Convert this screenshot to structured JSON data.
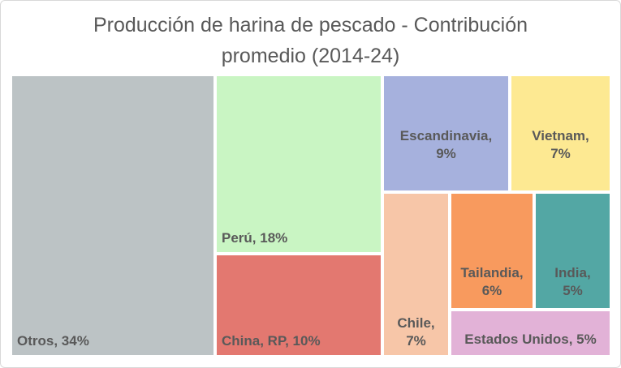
{
  "chart_data": {
    "type": "treemap",
    "title_lines": [
      "Producción de harina de pescado - Contribución",
      "promedio (2014-24)"
    ],
    "items": [
      {
        "key": "otros",
        "label": "Otros, 34%",
        "name": "Otros",
        "value": 34,
        "color": "#bcc3c5"
      },
      {
        "key": "peru",
        "label": "Perú, 18%",
        "name": "Perú",
        "value": 18,
        "color": "#c9f5c3"
      },
      {
        "key": "china",
        "label": "China, RP, 10%",
        "name": "China, RP",
        "value": 10,
        "color": "#e37870"
      },
      {
        "key": "escand",
        "label_lines": [
          "Escandinavia,",
          "9%"
        ],
        "name": "Escandinavia",
        "value": 9,
        "color": "#a6b1dd"
      },
      {
        "key": "vietnam",
        "label_lines": [
          "Vietnam,",
          "7%"
        ],
        "name": "Vietnam",
        "value": 7,
        "color": "#fde992"
      },
      {
        "key": "chile",
        "label_lines": [
          "Chile,",
          "7%"
        ],
        "name": "Chile",
        "value": 7,
        "color": "#f7c6a8"
      },
      {
        "key": "tailandia",
        "label_lines": [
          "Tailandia,",
          "6%"
        ],
        "name": "Tailandia",
        "value": 6,
        "color": "#f89a5e"
      },
      {
        "key": "india",
        "label_lines": [
          "India,",
          "5%"
        ],
        "name": "India",
        "value": 5,
        "color": "#53a7a4"
      },
      {
        "key": "eeuu",
        "label": "Estados Unidos, 5%",
        "name": "Estados Unidos",
        "value": 5,
        "color": "#e2b2d7"
      }
    ]
  }
}
